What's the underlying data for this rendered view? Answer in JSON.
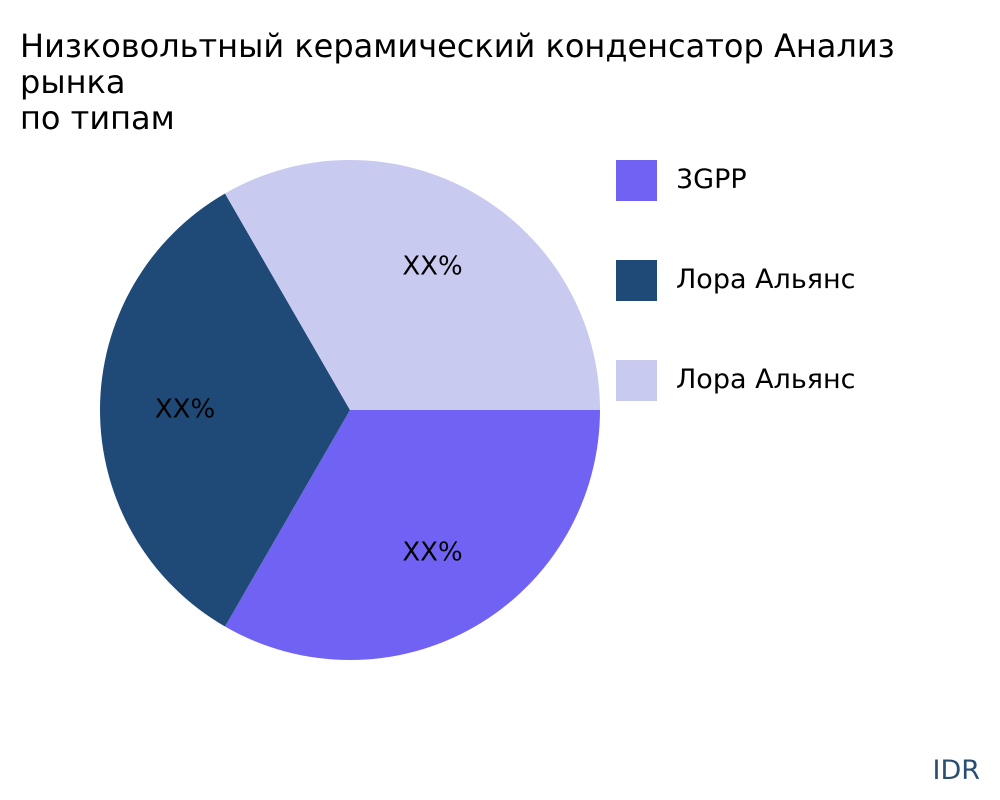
{
  "title": "Низковольтный керамический конденсатор Анализ рынка\nпо типам",
  "watermark": "IDR",
  "chart_data": {
    "type": "pie",
    "categories": [
      "3GPP",
      "Лора Альянс",
      "Лора Альянс"
    ],
    "values": [
      33.33,
      33.33,
      33.33
    ],
    "slice_labels": [
      "XX%",
      "XX%",
      "XX%"
    ],
    "colors": [
      "#7063f3",
      "#1f4977",
      "#c9caf0"
    ],
    "legend_position": "right"
  }
}
